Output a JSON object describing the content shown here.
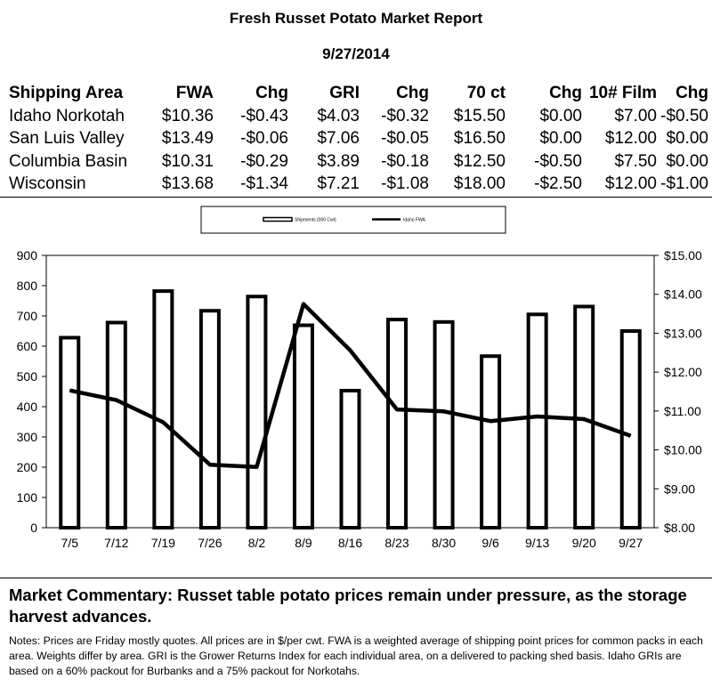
{
  "report": {
    "title": "Fresh Russet Potato Market Report",
    "date": "9/27/2014"
  },
  "table": {
    "headers": [
      "Shipping Area",
      "FWA",
      "Chg",
      "GRI",
      "Chg",
      "70 ct",
      "Chg",
      "10# Film",
      "Chg"
    ],
    "rows": [
      [
        "Idaho Norkotah",
        "$10.36",
        "-$0.43",
        "$4.03",
        "-$0.32",
        "$15.50",
        "$0.00",
        "$7.00",
        "-$0.50"
      ],
      [
        "San Luis Valley",
        "$13.49",
        "-$0.06",
        "$7.06",
        "-$0.05",
        "$16.50",
        "$0.00",
        "$12.00",
        "$0.00"
      ],
      [
        "Columbia Basin",
        "$10.31",
        "-$0.29",
        "$3.89",
        "-$0.18",
        "$12.50",
        "-$0.50",
        "$7.50",
        "$0.00"
      ],
      [
        "Wisconsin",
        "$13.68",
        "-$1.34",
        "$7.21",
        "-$1.08",
        "$18.00",
        "-$2.50",
        "$12.00",
        "-$1.00"
      ]
    ]
  },
  "chart_data": {
    "type": "bar",
    "categories": [
      "7/5",
      "7/12",
      "7/19",
      "7/26",
      "8/2",
      "8/9",
      "8/16",
      "8/23",
      "8/30",
      "9/6",
      "9/13",
      "9/20",
      "9/27"
    ],
    "series": [
      {
        "name": "Shipments (000 Cwt)",
        "type": "bar",
        "axis": "left",
        "values": [
          628,
          678,
          782,
          717,
          764,
          669,
          453,
          688,
          680,
          567,
          705,
          731,
          650
        ]
      },
      {
        "name": "Idaho FWA",
        "type": "line",
        "axis": "right",
        "values": [
          11.53,
          11.28,
          10.71,
          9.62,
          9.56,
          13.75,
          12.56,
          11.04,
          10.99,
          10.74,
          10.86,
          10.79,
          10.36
        ]
      }
    ],
    "y_left": {
      "min": 0,
      "max": 900,
      "ticks": [
        0,
        100,
        200,
        300,
        400,
        500,
        600,
        700,
        800,
        900
      ]
    },
    "y_right": {
      "min": 8,
      "max": 15,
      "ticks": [
        "$8.00",
        "$9.00",
        "$10.00",
        "$11.00",
        "$12.00",
        "$13.00",
        "$14.00",
        "$15.00"
      ]
    },
    "legend_position": "top-center",
    "grid": false,
    "colors": {
      "bar_fill": "#ffffff",
      "bar_stroke": "#000000",
      "line": "#000000"
    }
  },
  "commentary": "Market Commentary: Russet table potato prices remain under pressure, as the storage harvest advances.",
  "notes": "Notes: Prices are Friday mostly quotes. All prices are in $/per cwt. FWA is a weighted average of shipping point prices for  common packs in each area. Weights differ by area. GRI is the Grower Returns Index for each individual area, on a delivered to packing shed basis. Idaho GRIs are based on a 60% packout for Burbanks and a 75% packout for Norkotahs."
}
